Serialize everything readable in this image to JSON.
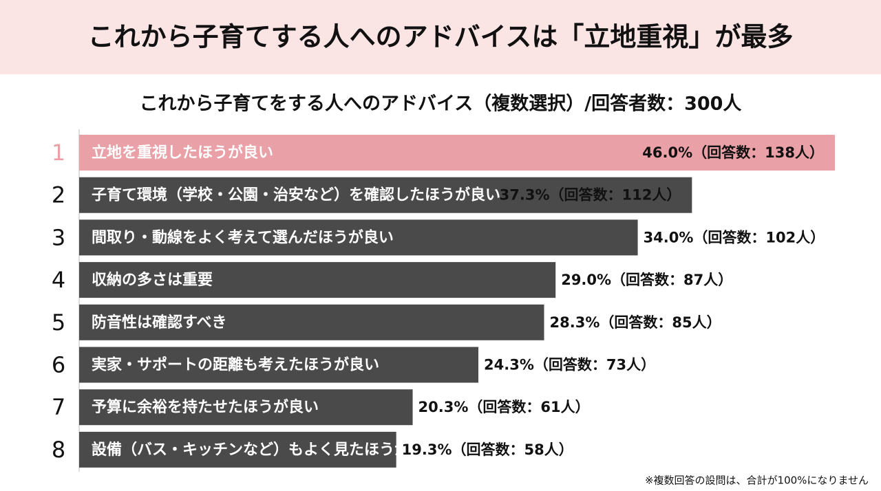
{
  "chart_data": {
    "type": "bar",
    "orientation": "horizontal",
    "title": "これから子育てする人へのアドバイスは「立地重視」が最多",
    "subtitle": "これから子育てをする人へのアドバイス（複数選択）/回答者数：300人",
    "ranks": [
      1,
      2,
      3,
      4,
      5,
      6,
      7,
      8
    ],
    "categories": [
      "立地を重視したほうが良い",
      "子育て環境（学校・公園・治安など）を確認したほうが良い",
      "間取り・動線をよく考えて選んだほうが良い",
      "収納の多さは重要",
      "防音性は確認すべき",
      "実家・サポートの距離も考えたほうが良い",
      "予算に余裕を持たせたほうが良い",
      "設備（バス・キッチンなど）もよく見たほうが良い"
    ],
    "values": [
      46.0,
      37.3,
      34.0,
      29.0,
      28.3,
      24.3,
      20.3,
      19.3
    ],
    "value_labels": [
      "46.0%（回答数：138人）",
      "37.3%（回答数：112人）",
      "34.0%（回答数：102人）",
      "29.0%（回答数：87人）",
      "28.3%（回答数：85人）",
      "24.3%（回答数：73人）",
      "20.3%（回答数：61人）",
      "19.3%（回答数：58人）"
    ],
    "colors": [
      "#e9a0a6",
      "#4a4a4a",
      "#4a4a4a",
      "#4a4a4a",
      "#4a4a4a",
      "#4a4a4a",
      "#4a4a4a",
      "#4a4a4a"
    ],
    "footnote": "※複数回答の設問は、合計が100%になりません"
  }
}
